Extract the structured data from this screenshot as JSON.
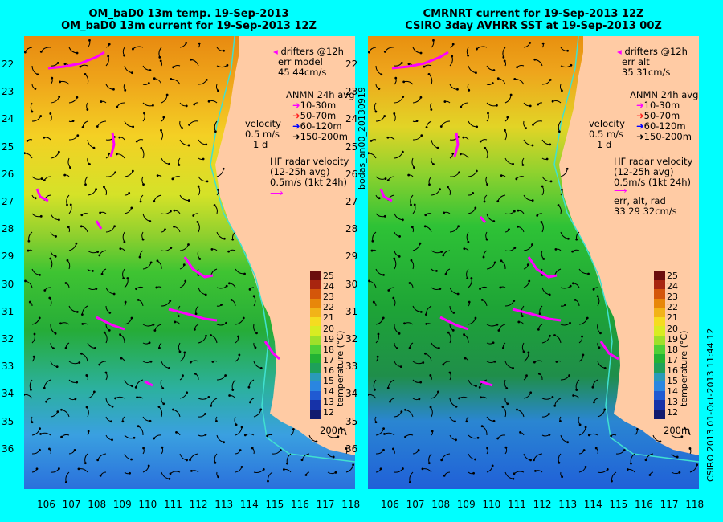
{
  "left_panel": {
    "title_line1": "OM_baD0 13m temp. 19-Sep-2013",
    "title_line2": "OM_baD0 13m current for 19-Sep-2013 12Z",
    "legend": {
      "drifters": "drifters @12h",
      "err_label": "err model",
      "err_values": "45 44cm/s",
      "anmn_title": "ANMN 24h avg",
      "anmn_depths": [
        "10-30m",
        "50-70m",
        "60-120m",
        "150-200m"
      ],
      "velocity_title": "velocity",
      "velocity_scale": "0.5 m/s",
      "velocity_time": "1 d",
      "hf_title": "HF radar velocity",
      "hf_avg": "(12-25h avg)",
      "hf_scale": "0.5m/s (1kt 24h)",
      "isobath": "200m"
    }
  },
  "right_panel": {
    "title_line1": "CMRNRT current for 19-Sep-2013 12Z",
    "title_line2": "CSIRO 3day AVHRR SST at 19-Sep-2013 00Z",
    "legend": {
      "drifters": "drifters @12h",
      "err_label": "err alt",
      "err_values": "35 31cm/s",
      "anmn_title": "ANMN 24h avg",
      "anmn_depths": [
        "10-30m",
        "50-70m",
        "60-120m",
        "150-200m"
      ],
      "velocity_title": "velocity",
      "velocity_scale": "0.5 m/s",
      "velocity_time": "1 d",
      "hf_title": "HF radar velocity",
      "hf_avg": "(12-25h avg)",
      "hf_scale": "0.5m/s (1kt 24h)",
      "err2_label": "err, alt, rad",
      "err2_values": "33 29 32cm/s",
      "isobath": "200m"
    }
  },
  "axes": {
    "longitude_ticks": [
      "106",
      "107",
      "108",
      "109",
      "110",
      "111",
      "112",
      "113",
      "114",
      "115",
      "116",
      "117",
      "118"
    ],
    "latitude_ticks": [
      "22",
      "23",
      "24",
      "25",
      "26",
      "27",
      "28",
      "29",
      "30",
      "31",
      "32",
      "33",
      "34",
      "35",
      "36"
    ]
  },
  "colorbar": {
    "labels": [
      "25",
      "24",
      "23",
      "22",
      "21",
      "20",
      "19",
      "18",
      "17",
      "16",
      "15",
      "14",
      "13",
      "12"
    ],
    "axis_label": "temperature (°C)",
    "colors": [
      "#6b0d0d",
      "#a8250f",
      "#d4560a",
      "#e8870a",
      "#f2b318",
      "#f5dc20",
      "#d8ec22",
      "#9ee02a",
      "#4fd036",
      "#22b234",
      "#1ea05a",
      "#2a9ab8",
      "#2a86e0",
      "#205ad2",
      "#1632a8",
      "#121a6e"
    ]
  },
  "side_texts": {
    "middle": "bodas_an00_20130919",
    "right": "CSIRO 2013   01-Oct-2013 11:44:12"
  },
  "colors": {
    "background": "#00ffff",
    "land": "#ffcba4",
    "drifter": "#ff00ff",
    "anmn_10_30": "#ff00ff",
    "anmn_50_70": "#ff2020",
    "anmn_60_120": "#0000ff",
    "anmn_150_200": "#000000",
    "hf_radar": "#ff00ff",
    "isobath": "#40e0d0"
  }
}
